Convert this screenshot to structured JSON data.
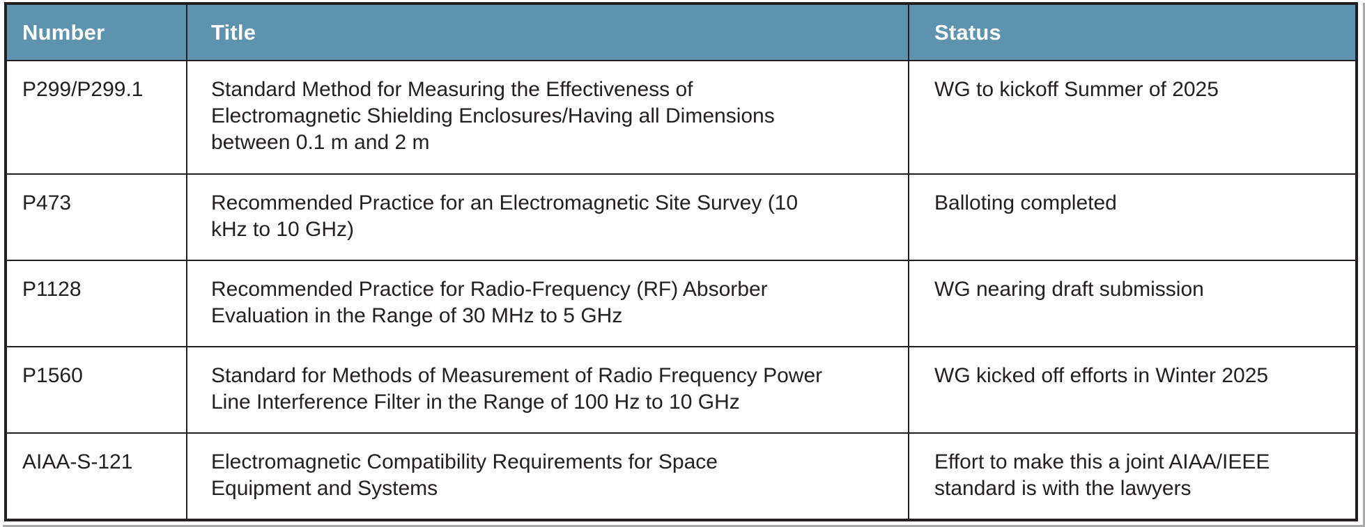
{
  "table": {
    "columns": [
      {
        "key": "number",
        "label": "Number"
      },
      {
        "key": "title",
        "label": "Title"
      },
      {
        "key": "status",
        "label": "Status"
      }
    ],
    "rows": [
      {
        "number": "P299/P299.1",
        "title": "Standard Method for Measuring the Effectiveness of\nElectromagnetic Shielding Enclosures/Having all Dimensions\nbetween 0.1 m and 2 m",
        "status": "WG to kickoff Summer of 2025"
      },
      {
        "number": "P473",
        "title": "Recommended Practice for an Electromagnetic Site Survey (10\nkHz to 10 GHz)",
        "status": "Balloting completed"
      },
      {
        "number": "P1128",
        "title": "Recommended Practice for Radio-Frequency (RF) Absorber\nEvaluation in the Range of 30 MHz to 5 GHz",
        "status": "WG nearing draft submission"
      },
      {
        "number": "P1560",
        "title": "Standard for Methods of Measurement of Radio Frequency Power\nLine Interference Filter in the Range of 100 Hz to 10 GHz",
        "status": "WG kicked off efforts in Winter 2025"
      },
      {
        "number": "AIAA-S-121",
        "title": "Electromagnetic Compatibility Requirements for Space\nEquipment and Systems",
        "status": "Effort to make this a joint AIAA/IEEE\nstandard is with the lawyers"
      }
    ],
    "colors": {
      "header_bg": "#5D93AE",
      "header_text": "#FFFFFF",
      "body_text": "#231F20",
      "border": "#231F20",
      "row_bg": "#FFFFFF",
      "page_edge": "#A9A9A9"
    }
  }
}
